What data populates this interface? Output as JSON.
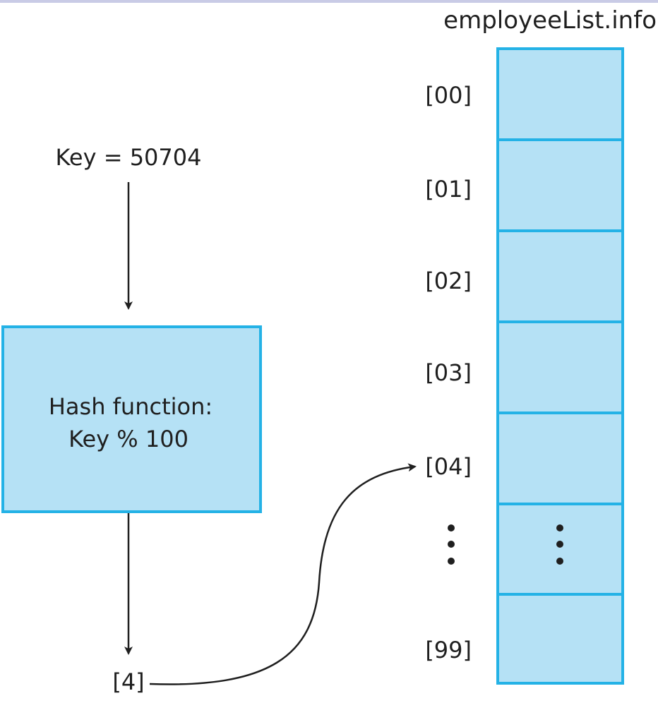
{
  "array": {
    "name": "employeeList.info",
    "slots": [
      {
        "index": "[00]",
        "content": ""
      },
      {
        "index": "[01]",
        "content": ""
      },
      {
        "index": "[02]",
        "content": ""
      },
      {
        "index": "[03]",
        "content": ""
      },
      {
        "index": "[04]",
        "content": ""
      },
      {
        "index": "",
        "content": "",
        "ellipsis": true
      },
      {
        "index": "[99]",
        "content": ""
      }
    ]
  },
  "key": {
    "label": "Key = 50704"
  },
  "hash_function": {
    "line1": "Hash function:",
    "line2": "Key % 100"
  },
  "result": {
    "label": "[4]",
    "target_slot": "[04]"
  },
  "colors": {
    "cell_fill": "#b5e1f5",
    "cell_stroke": "#24b2e6",
    "box_fill": "#b5e1f5",
    "box_stroke": "#24b2e6",
    "arrow": "#1f1f1f",
    "text": "#1f1f1f"
  }
}
